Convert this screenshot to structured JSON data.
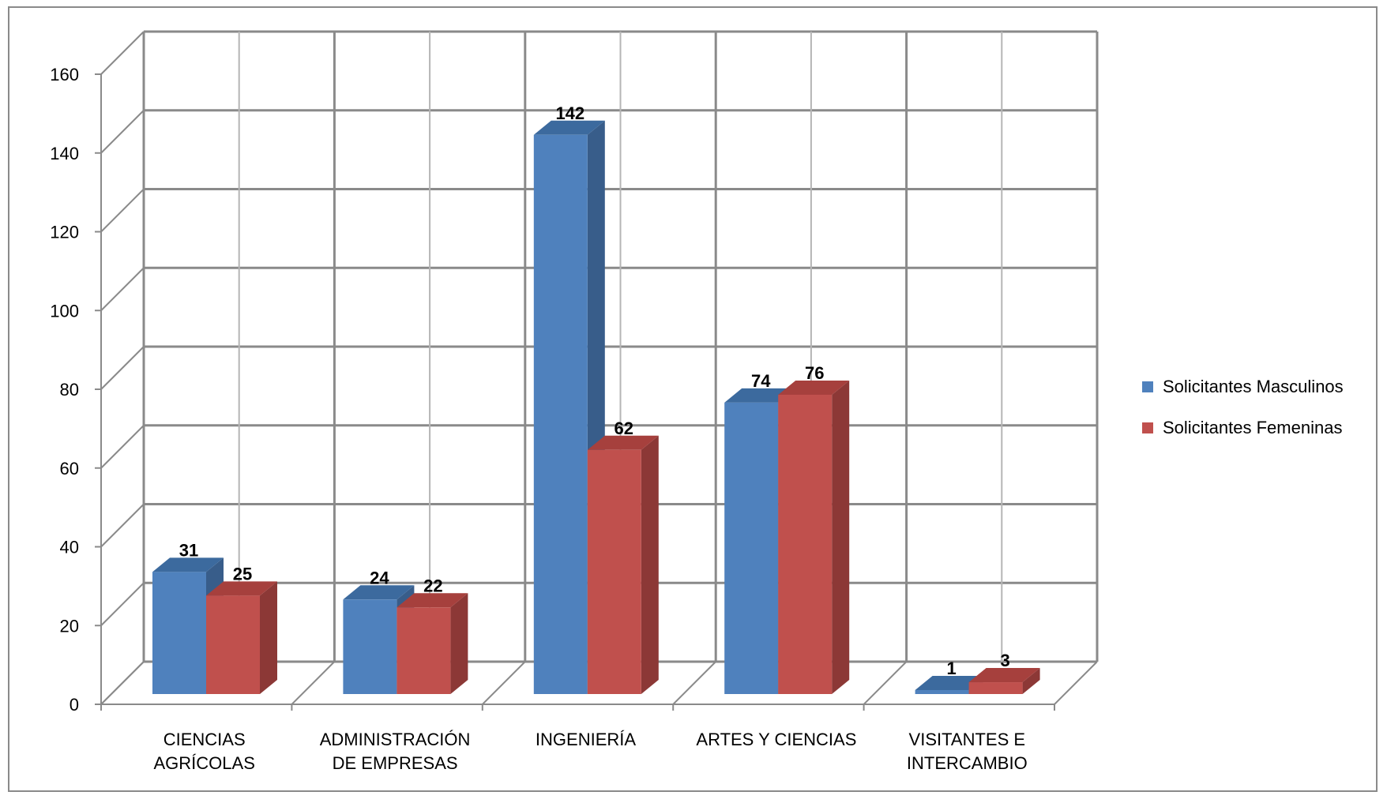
{
  "chart_data": {
    "type": "bar",
    "categories": [
      "CIENCIAS\nAGRÍCOLAS",
      "ADMINISTRACIÓN\nDE EMPRESAS",
      "INGENIERÍA",
      "ARTES Y CIENCIAS",
      "VISITANTES  E\nINTERCAMBIO"
    ],
    "series": [
      {
        "name": "Solicitantes Masculinos",
        "values": [
          31,
          24,
          142,
          74,
          1
        ],
        "color": "#4f81bd"
      },
      {
        "name": "Solicitantes Femeninas",
        "values": [
          25,
          22,
          62,
          76,
          3
        ],
        "color": "#c0504d"
      }
    ],
    "yticks": [
      0,
      20,
      40,
      60,
      80,
      100,
      120,
      140,
      160
    ],
    "ylim": [
      0,
      160
    ],
    "grid": true,
    "legend": "right",
    "colors": {
      "male_side": "#385d8a",
      "male_top": "#3c6a9e",
      "female_side": "#8c3836",
      "female_top": "#a6403d",
      "grid": "#8a8a8a"
    }
  }
}
